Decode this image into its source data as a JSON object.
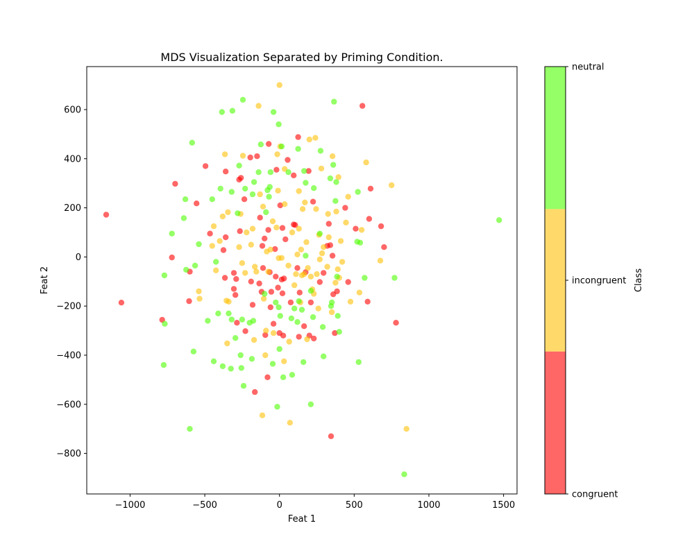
{
  "chart_data": {
    "type": "scatter",
    "title": "MDS Visualization Separated by Priming Condition.",
    "xlabel": "Feat 1",
    "ylabel": "Feat 2",
    "xlim": [
      -1290,
      1590
    ],
    "ylim": [
      -965,
      775
    ],
    "xticks": [
      -1000,
      -500,
      0,
      500,
      1000,
      1500
    ],
    "yticks": [
      -800,
      -600,
      -400,
      -200,
      0,
      200,
      400,
      600
    ],
    "grid": false,
    "point_opacity": 0.6,
    "colorbar": {
      "label": "Class",
      "ticks": [
        "congruent",
        "incongruent",
        "neutral"
      ],
      "colors": [
        "#ff0000",
        "#ffc107",
        "#4cff00"
      ]
    },
    "series": [
      {
        "name": "congruent",
        "color": "#ff0000",
        "points": [
          [
            -1160,
            172
          ],
          [
            -1058,
            -186
          ],
          [
            -785,
            -256
          ],
          [
            -720,
            -2
          ],
          [
            -698,
            298
          ],
          [
            -600,
            -60
          ],
          [
            -605,
            -180
          ],
          [
            -555,
            218
          ],
          [
            -495,
            370
          ],
          [
            -465,
            95
          ],
          [
            -375,
            28
          ],
          [
            -360,
            348
          ],
          [
            -360,
            80
          ],
          [
            -365,
            -85
          ],
          [
            -305,
            -130
          ],
          [
            -305,
            -65
          ],
          [
            -295,
            -155
          ],
          [
            -290,
            -90
          ],
          [
            -285,
            -268
          ],
          [
            -270,
            315
          ],
          [
            -258,
            322
          ],
          [
            -265,
            105
          ],
          [
            -235,
            235
          ],
          [
            -228,
            -302
          ],
          [
            -195,
            405
          ],
          [
            -190,
            -100
          ],
          [
            -180,
            -195
          ],
          [
            -165,
            -550
          ],
          [
            -150,
            410
          ],
          [
            -135,
            -108
          ],
          [
            -130,
            160
          ],
          [
            -120,
            -142
          ],
          [
            -115,
            45
          ],
          [
            -110,
            -45
          ],
          [
            -100,
            75
          ],
          [
            -95,
            -318
          ],
          [
            -80,
            -490
          ],
          [
            -75,
            110
          ],
          [
            -72,
            460
          ],
          [
            -65,
            -62
          ],
          [
            -60,
            -205
          ],
          [
            -55,
            -142
          ],
          [
            -40,
            -272
          ],
          [
            -30,
            32
          ],
          [
            -25,
            -80
          ],
          [
            -20,
            355
          ],
          [
            -10,
            -125
          ],
          [
            0,
            -310
          ],
          [
            5,
            210
          ],
          [
            15,
            -92
          ],
          [
            20,
            118
          ],
          [
            20,
            -148
          ],
          [
            25,
            -320
          ],
          [
            30,
            -88
          ],
          [
            40,
            72
          ],
          [
            55,
            395
          ],
          [
            75,
            -185
          ],
          [
            95,
            132
          ],
          [
            95,
            332
          ],
          [
            105,
            130
          ],
          [
            120,
            -45
          ],
          [
            125,
            488
          ],
          [
            130,
            -325
          ],
          [
            135,
            -145
          ],
          [
            165,
            -282
          ],
          [
            175,
            -62
          ],
          [
            195,
            350
          ],
          [
            200,
            -320
          ],
          [
            210,
            -185
          ],
          [
            225,
            225
          ],
          [
            230,
            -332
          ],
          [
            270,
            -102
          ],
          [
            295,
            -65
          ],
          [
            320,
            45
          ],
          [
            330,
            135
          ],
          [
            340,
            48
          ],
          [
            345,
            -730
          ],
          [
            355,
            5
          ],
          [
            360,
            -152
          ],
          [
            370,
            -310
          ],
          [
            385,
            -140
          ],
          [
            440,
            200
          ],
          [
            460,
            -102
          ],
          [
            510,
            115
          ],
          [
            555,
            615
          ],
          [
            590,
            -182
          ],
          [
            600,
            155
          ],
          [
            610,
            278
          ],
          [
            680,
            125
          ],
          [
            700,
            40
          ],
          [
            780,
            -268
          ]
        ]
      },
      {
        "name": "incongruent",
        "color": "#ffc107",
        "points": [
          [
            -540,
            -140
          ],
          [
            -535,
            -170
          ],
          [
            -450,
            45
          ],
          [
            -440,
            125
          ],
          [
            -425,
            -55
          ],
          [
            -400,
            65
          ],
          [
            -380,
            165
          ],
          [
            -365,
            418
          ],
          [
            -355,
            -178
          ],
          [
            -350,
            -352
          ],
          [
            -345,
            182
          ],
          [
            -340,
            -182
          ],
          [
            -270,
            40
          ],
          [
            -260,
            175
          ],
          [
            -250,
            -25
          ],
          [
            -245,
            412
          ],
          [
            -230,
            -65
          ],
          [
            -220,
            100
          ],
          [
            -190,
            50
          ],
          [
            -180,
            115
          ],
          [
            -170,
            -338
          ],
          [
            -165,
            -40
          ],
          [
            -155,
            -60
          ],
          [
            -140,
            615
          ],
          [
            -130,
            255
          ],
          [
            -115,
            -645
          ],
          [
            -110,
            205
          ],
          [
            -105,
            -170
          ],
          [
            -95,
            -400
          ],
          [
            -90,
            -300
          ],
          [
            -85,
            22
          ],
          [
            -75,
            -60
          ],
          [
            -60,
            30
          ],
          [
            -45,
            145
          ],
          [
            -40,
            -310
          ],
          [
            -20,
            120
          ],
          [
            -15,
            418
          ],
          [
            -10,
            270
          ],
          [
            -5,
            -5
          ],
          [
            0,
            700
          ],
          [
            5,
            450
          ],
          [
            15,
            -4
          ],
          [
            30,
            -425
          ],
          [
            35,
            215
          ],
          [
            35,
            358
          ],
          [
            60,
            -35
          ],
          [
            65,
            -345
          ],
          [
            70,
            -675
          ],
          [
            85,
            100
          ],
          [
            100,
            -115
          ],
          [
            110,
            -70
          ],
          [
            120,
            10
          ],
          [
            130,
            115
          ],
          [
            140,
            -185
          ],
          [
            130,
            268
          ],
          [
            145,
            30
          ],
          [
            150,
            -75
          ],
          [
            155,
            195
          ],
          [
            165,
            -70
          ],
          [
            170,
            222
          ],
          [
            180,
            60
          ],
          [
            185,
            -335
          ],
          [
            190,
            -45
          ],
          [
            200,
            478
          ],
          [
            210,
            -80
          ],
          [
            220,
            -132
          ],
          [
            230,
            -150
          ],
          [
            240,
            485
          ],
          [
            245,
            195
          ],
          [
            250,
            -70
          ],
          [
            260,
            -210
          ],
          [
            265,
            90
          ],
          [
            270,
            -10
          ],
          [
            280,
            360
          ],
          [
            285,
            15
          ],
          [
            295,
            40
          ],
          [
            320,
            -40
          ],
          [
            325,
            175
          ],
          [
            330,
            80
          ],
          [
            350,
            -225
          ],
          [
            355,
            410
          ],
          [
            375,
            -105
          ],
          [
            380,
            185
          ],
          [
            390,
            -50
          ],
          [
            395,
            325
          ],
          [
            400,
            -85
          ],
          [
            410,
            65
          ],
          [
            420,
            -20
          ],
          [
            445,
            140
          ],
          [
            460,
            245
          ],
          [
            475,
            -182
          ],
          [
            535,
            -145
          ],
          [
            550,
            110
          ],
          [
            580,
            385
          ],
          [
            675,
            -15
          ],
          [
            750,
            292
          ],
          [
            850,
            -700
          ]
        ]
      },
      {
        "name": "neutral",
        "color": "#4cff00",
        "points": [
          [
            -770,
            -75
          ],
          [
            -775,
            -440
          ],
          [
            -768,
            -272
          ],
          [
            -720,
            95
          ],
          [
            -640,
            158
          ],
          [
            -630,
            235
          ],
          [
            -625,
            -52
          ],
          [
            -600,
            -700
          ],
          [
            -585,
            465
          ],
          [
            -575,
            -385
          ],
          [
            -565,
            -35
          ],
          [
            -540,
            52
          ],
          [
            -480,
            -260
          ],
          [
            -450,
            235
          ],
          [
            -440,
            -425
          ],
          [
            -425,
            -20
          ],
          [
            -410,
            -230
          ],
          [
            -395,
            278
          ],
          [
            -385,
            590
          ],
          [
            -380,
            -445
          ],
          [
            -340,
            -230
          ],
          [
            -325,
            -455
          ],
          [
            -320,
            265
          ],
          [
            -315,
            595
          ],
          [
            -320,
            -255
          ],
          [
            -295,
            -330
          ],
          [
            -280,
            178
          ],
          [
            -270,
            372
          ],
          [
            -260,
            -400
          ],
          [
            -255,
            -452
          ],
          [
            -250,
            -255
          ],
          [
            -245,
            640
          ],
          [
            -240,
            -525
          ],
          [
            -230,
            278
          ],
          [
            -200,
            -268
          ],
          [
            -185,
            -415
          ],
          [
            -180,
            255
          ],
          [
            -175,
            -260
          ],
          [
            -170,
            305
          ],
          [
            -140,
            345
          ],
          [
            -125,
            458
          ],
          [
            -100,
            -150
          ],
          [
            -90,
            182
          ],
          [
            -80,
            272
          ],
          [
            -70,
            245
          ],
          [
            -65,
            285
          ],
          [
            -60,
            345
          ],
          [
            -45,
            -435
          ],
          [
            -40,
            590
          ],
          [
            -25,
            -185
          ],
          [
            -15,
            -610
          ],
          [
            -5,
            540
          ],
          [
            -5,
            -205
          ],
          [
            0,
            -375
          ],
          [
            5,
            -240
          ],
          [
            15,
            450
          ],
          [
            25,
            -490
          ],
          [
            60,
            345
          ],
          [
            80,
            -250
          ],
          [
            85,
            -480
          ],
          [
            100,
            -210
          ],
          [
            120,
            -265
          ],
          [
            125,
            440
          ],
          [
            130,
            -180
          ],
          [
            150,
            -215
          ],
          [
            160,
            -428
          ],
          [
            165,
            350
          ],
          [
            175,
            302
          ],
          [
            175,
            5
          ],
          [
            210,
            -600
          ],
          [
            210,
            -138
          ],
          [
            225,
            -245
          ],
          [
            230,
            280
          ],
          [
            270,
            95
          ],
          [
            275,
            432
          ],
          [
            290,
            -285
          ],
          [
            295,
            -405
          ],
          [
            340,
            320
          ],
          [
            345,
            -200
          ],
          [
            350,
            -185
          ],
          [
            360,
            375
          ],
          [
            365,
            632
          ],
          [
            375,
            228
          ],
          [
            380,
            305
          ],
          [
            385,
            -80
          ],
          [
            390,
            -240
          ],
          [
            400,
            -305
          ],
          [
            520,
            62
          ],
          [
            525,
            265
          ],
          [
            530,
            -428
          ],
          [
            540,
            58
          ],
          [
            570,
            -85
          ],
          [
            770,
            -85
          ],
          [
            835,
            -885
          ],
          [
            1470,
            150
          ]
        ]
      }
    ]
  }
}
